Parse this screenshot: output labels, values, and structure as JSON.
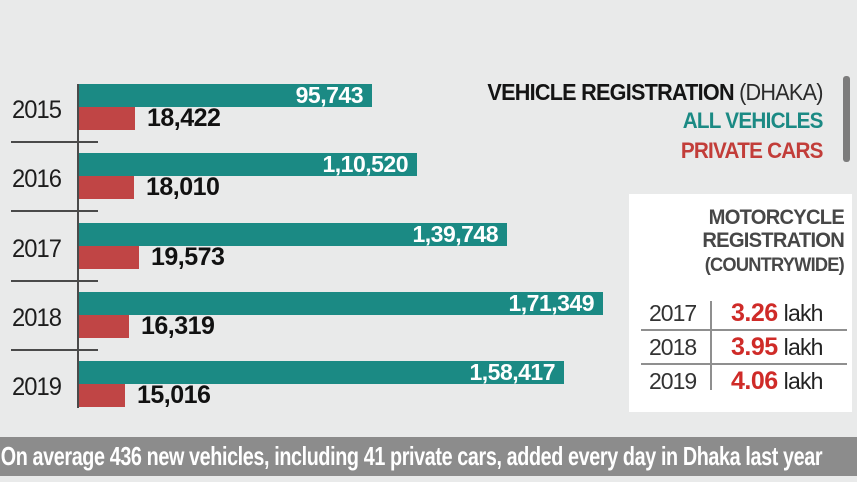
{
  "chart_data": [
    {
      "type": "bar",
      "orientation": "horizontal",
      "title": "VEHICLE REGISTRATION",
      "title_suffix": "(DHAKA)",
      "legend_position": "top-right",
      "categories": [
        "2015",
        "2016",
        "2017",
        "2018",
        "2019"
      ],
      "series": [
        {
          "name": "ALL VEHICLES",
          "color": "#1b8a84",
          "values": [
            95743,
            110520,
            139748,
            171349,
            158417
          ],
          "labels": [
            "95,743",
            "1,10,520",
            "1,39,748",
            "1,71,349",
            "1,58,417"
          ]
        },
        {
          "name": "PRIVATE CARS",
          "color": "#c04545",
          "values": [
            18422,
            18010,
            19573,
            16319,
            15016
          ],
          "labels": [
            "18,422",
            "18,010",
            "19,573",
            "16,319",
            "15,016"
          ]
        }
      ],
      "xlim": [
        0,
        180000
      ],
      "grid": false
    },
    {
      "type": "table",
      "title_line1": "MOTORCYCLE",
      "title_line2": "REGISTRATION",
      "subtitle": "(COUNTRYWIDE)",
      "rows": [
        {
          "year": "2017",
          "value": "3.26",
          "unit": "lakh"
        },
        {
          "year": "2018",
          "value": "3.95",
          "unit": "lakh"
        },
        {
          "year": "2019",
          "value": "4.06",
          "unit": "lakh"
        }
      ],
      "value_color": "#cf2b28"
    }
  ],
  "footer": {
    "text": "On average 436 new vehicles, including 41 private cars, added every day in Dhaka last year"
  },
  "colors": {
    "background": "#e9eaea",
    "all_vehicles_teal": "#1b8a84",
    "private_cars_red": "#c04545",
    "legend_red_text": "#c23d39",
    "panel_value_red": "#cf2b28",
    "banner_gray": "#8c8c8c",
    "axis_gray": "#4a4a4a"
  }
}
